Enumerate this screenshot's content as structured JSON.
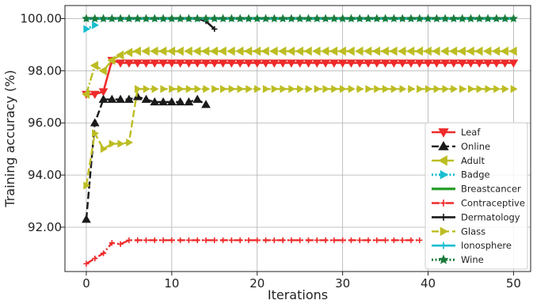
{
  "chart_data": {
    "type": "line",
    "title": "",
    "xlabel": "Iterations",
    "ylabel": "Training accuracy (%)",
    "xlim": [
      -2.5,
      52
    ],
    "ylim": [
      90.3,
      100.5
    ],
    "xticks": [
      0,
      10,
      20,
      30,
      40,
      50
    ],
    "xtick_labels": [
      "0",
      "10",
      "20",
      "30",
      "40",
      "50"
    ],
    "yticks": [
      92,
      94,
      96,
      98,
      100
    ],
    "ytick_labels": [
      "92.00",
      "94.00",
      "96.00",
      "98.00",
      "100.00"
    ],
    "grid": true,
    "legend_position": "lower-right",
    "series": [
      {
        "name": "Leaf",
        "color": "#ee2a2a",
        "dash": "solid",
        "marker": "tri-down",
        "x": [
          0,
          1,
          2,
          3,
          4,
          5,
          6,
          7,
          8,
          9,
          10,
          11,
          12,
          13,
          14,
          15,
          16,
          17,
          18,
          19,
          20,
          21,
          22,
          23,
          24,
          25,
          26,
          27,
          28,
          29,
          30,
          31,
          32,
          33,
          34,
          35,
          36,
          37,
          38,
          39,
          40,
          41,
          42,
          43,
          44,
          45,
          46,
          47,
          48,
          49,
          50
        ],
        "y": [
          97.1,
          97.1,
          97.2,
          98.4,
          98.3,
          98.3,
          98.3,
          98.3,
          98.3,
          98.3,
          98.3,
          98.3,
          98.3,
          98.3,
          98.3,
          98.3,
          98.3,
          98.3,
          98.3,
          98.3,
          98.3,
          98.3,
          98.3,
          98.3,
          98.3,
          98.3,
          98.3,
          98.3,
          98.3,
          98.3,
          98.3,
          98.3,
          98.3,
          98.3,
          98.3,
          98.3,
          98.3,
          98.3,
          98.3,
          98.3,
          98.3,
          98.3,
          98.3,
          98.3,
          98.3,
          98.3,
          98.3,
          98.3,
          98.3,
          98.3,
          98.3
        ]
      },
      {
        "name": "Online",
        "color": "#1a1a1a",
        "dash": "dashed",
        "marker": "tri-up",
        "x": [
          0,
          1,
          2,
          3,
          4,
          5,
          6,
          7,
          8,
          9,
          10,
          11,
          12,
          13,
          14
        ],
        "y": [
          92.3,
          96.0,
          96.9,
          96.9,
          96.9,
          96.9,
          97.0,
          96.9,
          96.8,
          96.8,
          96.8,
          96.8,
          96.8,
          96.9,
          96.7
        ]
      },
      {
        "name": "Adult",
        "color": "#bcbd22",
        "dash": "dashdot",
        "marker": "tri-left",
        "x": [
          0,
          1,
          2,
          3,
          4,
          5,
          6,
          7,
          8,
          9,
          10,
          11,
          12,
          13,
          14,
          15,
          16,
          17,
          18,
          19,
          20,
          21,
          22,
          23,
          24,
          25,
          26,
          27,
          28,
          29,
          30,
          31,
          32,
          33,
          34,
          35,
          36,
          37,
          38,
          39,
          40,
          41,
          42,
          43,
          44,
          45,
          46,
          47,
          48,
          49,
          50
        ],
        "y": [
          97.1,
          98.2,
          98.0,
          98.4,
          98.6,
          98.7,
          98.75,
          98.75,
          98.75,
          98.75,
          98.75,
          98.75,
          98.75,
          98.75,
          98.75,
          98.75,
          98.75,
          98.75,
          98.75,
          98.75,
          98.75,
          98.75,
          98.75,
          98.75,
          98.75,
          98.75,
          98.75,
          98.75,
          98.75,
          98.75,
          98.75,
          98.75,
          98.75,
          98.75,
          98.75,
          98.75,
          98.75,
          98.75,
          98.75,
          98.75,
          98.75,
          98.75,
          98.75,
          98.75,
          98.75,
          98.75,
          98.75,
          98.75,
          98.75,
          98.75,
          98.75
        ]
      },
      {
        "name": "Badge",
        "color": "#17becf",
        "dash": "dotted",
        "marker": "tri-right",
        "x": [
          0,
          1
        ],
        "y": [
          99.6,
          99.75
        ]
      },
      {
        "name": "Breastcancer",
        "color": "#2ca02c",
        "dash": "solid",
        "marker": "none",
        "x": [
          0,
          50
        ],
        "y": [
          100.0,
          100.0
        ]
      },
      {
        "name": "Contraceptive",
        "color": "#ee2a2a",
        "dash": "dashdot",
        "marker": "plus",
        "x": [
          0,
          1,
          2,
          3,
          4,
          5,
          6,
          7,
          8,
          9,
          10,
          11,
          12,
          13,
          14,
          15,
          16,
          17,
          18,
          19,
          20,
          21,
          22,
          23,
          24,
          25,
          26,
          27,
          28,
          29,
          30,
          31,
          32,
          33,
          34,
          35,
          36,
          37,
          38,
          39
        ],
        "y": [
          90.6,
          90.8,
          91.0,
          91.4,
          91.35,
          91.5,
          91.5,
          91.5,
          91.5,
          91.5,
          91.5,
          91.5,
          91.5,
          91.5,
          91.5,
          91.5,
          91.5,
          91.5,
          91.5,
          91.5,
          91.5,
          91.5,
          91.5,
          91.5,
          91.5,
          91.5,
          91.5,
          91.5,
          91.5,
          91.5,
          91.5,
          91.5,
          91.5,
          91.5,
          91.5,
          91.5,
          91.5,
          91.5,
          91.5,
          91.5
        ]
      },
      {
        "name": "Dermatology",
        "color": "#1a1a1a",
        "dash": "solid",
        "marker": "plus",
        "x": [
          0,
          1,
          2,
          3,
          4,
          5,
          6,
          7,
          8,
          9,
          10,
          11,
          12,
          13,
          14,
          15
        ],
        "y": [
          100.0,
          100.0,
          100.0,
          100.0,
          100.0,
          100.0,
          100.0,
          100.0,
          100.0,
          100.0,
          100.0,
          100.0,
          100.0,
          100.0,
          99.9,
          99.6
        ]
      },
      {
        "name": "Glass",
        "color": "#bcbd22",
        "dash": "dashed",
        "marker": "tri-right",
        "x": [
          0,
          1,
          2,
          3,
          4,
          5,
          6,
          7,
          8,
          9,
          10,
          11,
          12,
          13,
          14,
          15,
          16,
          17,
          18,
          19,
          20,
          21,
          22,
          23,
          24,
          25,
          26,
          27,
          28,
          29,
          30,
          31,
          32,
          33,
          34,
          35,
          36,
          37,
          38,
          39,
          40,
          41,
          42,
          43,
          44,
          45,
          46,
          47,
          48,
          49,
          50
        ],
        "y": [
          93.6,
          95.6,
          95.0,
          95.2,
          95.2,
          95.25,
          97.3,
          97.3,
          97.3,
          97.3,
          97.3,
          97.3,
          97.3,
          97.3,
          97.3,
          97.3,
          97.3,
          97.3,
          97.3,
          97.3,
          97.3,
          97.3,
          97.3,
          97.3,
          97.3,
          97.3,
          97.3,
          97.3,
          97.3,
          97.3,
          97.3,
          97.3,
          97.3,
          97.3,
          97.3,
          97.3,
          97.3,
          97.3,
          97.3,
          97.3,
          97.3,
          97.3,
          97.3,
          97.3,
          97.3,
          97.3,
          97.3,
          97.3,
          97.3,
          97.3,
          97.3
        ]
      },
      {
        "name": "Ionosphere",
        "color": "#17becf",
        "dash": "solid",
        "marker": "plus",
        "x": [
          0,
          1,
          2,
          3,
          4,
          5,
          6,
          7,
          8,
          9,
          10,
          11,
          12,
          13,
          14,
          15,
          16,
          17,
          18,
          19,
          20,
          21,
          22,
          23,
          24,
          25,
          26,
          27,
          28,
          29,
          30,
          31,
          32,
          33,
          34,
          35,
          36,
          37,
          38,
          39,
          40,
          41,
          42,
          43,
          44,
          45,
          46,
          47,
          48,
          49,
          50
        ],
        "y": [
          100.0,
          100.0,
          100.0,
          100.0,
          100.0,
          100.0,
          100.0,
          100.0,
          100.0,
          100.0,
          100.0,
          100.0,
          100.0,
          100.0,
          100.0,
          100.0,
          100.0,
          100.0,
          100.0,
          100.0,
          100.0,
          100.0,
          100.0,
          100.0,
          100.0,
          100.0,
          100.0,
          100.0,
          100.0,
          100.0,
          100.0,
          100.0,
          100.0,
          100.0,
          100.0,
          100.0,
          100.0,
          100.0,
          100.0,
          100.0,
          100.0,
          100.0,
          100.0,
          100.0,
          100.0,
          100.0,
          100.0,
          100.0,
          100.0,
          100.0,
          100.0
        ]
      },
      {
        "name": "Wine",
        "color": "#1a7a3a",
        "dash": "dotted",
        "marker": "star",
        "x": [
          0,
          1,
          2,
          3,
          4,
          5,
          6,
          7,
          8,
          9,
          10,
          11,
          12,
          13,
          14,
          15,
          16,
          17,
          18,
          19,
          20,
          21,
          22,
          23,
          24,
          25,
          26,
          27,
          28,
          29,
          30,
          31,
          32,
          33,
          34,
          35,
          36,
          37,
          38,
          39,
          40,
          41,
          42,
          43,
          44,
          45,
          46,
          47,
          48,
          49,
          50
        ],
        "y": [
          100.0,
          100.0,
          100.0,
          100.0,
          100.0,
          100.0,
          100.0,
          100.0,
          100.0,
          100.0,
          100.0,
          100.0,
          100.0,
          100.0,
          100.0,
          100.0,
          100.0,
          100.0,
          100.0,
          100.0,
          100.0,
          100.0,
          100.0,
          100.0,
          100.0,
          100.0,
          100.0,
          100.0,
          100.0,
          100.0,
          100.0,
          100.0,
          100.0,
          100.0,
          100.0,
          100.0,
          100.0,
          100.0,
          100.0,
          100.0,
          100.0,
          100.0,
          100.0,
          100.0,
          100.0,
          100.0,
          100.0,
          100.0,
          100.0,
          100.0,
          100.0
        ]
      }
    ]
  }
}
